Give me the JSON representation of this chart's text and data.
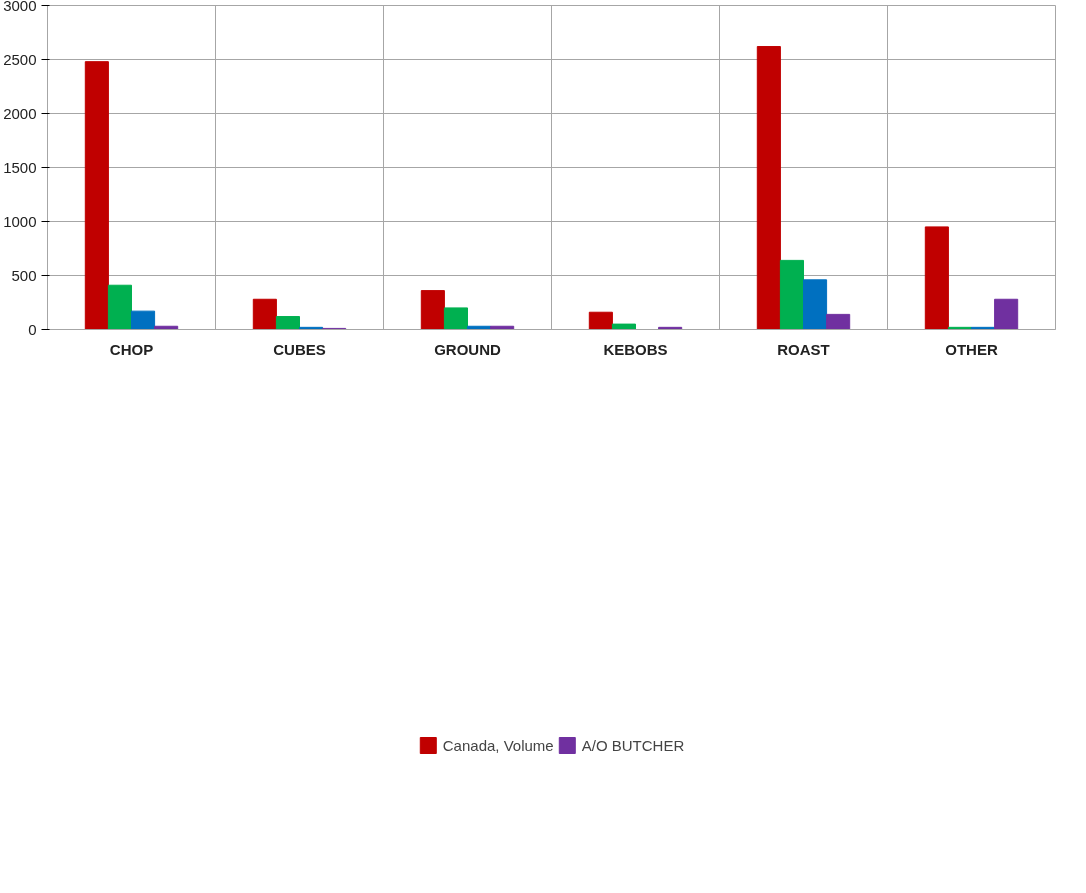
{
  "chart_data": {
    "type": "bar",
    "categories": [
      "CHOP",
      "CUBES",
      "GROUND",
      "KEBOBS",
      "ROAST",
      "OTHER"
    ],
    "series": [
      {
        "name": "Canada, Volume",
        "color": "#c00000",
        "values": [
          2480,
          280,
          360,
          160,
          2620,
          950
        ]
      },
      {
        "color": "#00b050",
        "values": [
          410,
          120,
          200,
          50,
          640,
          20
        ]
      },
      {
        "color": "#0070c0",
        "values": [
          170,
          20,
          30,
          null,
          460,
          20
        ]
      },
      {
        "name": "A/O BUTCHER",
        "color": "#7030a0",
        "values": [
          30,
          10,
          30,
          20,
          140,
          280
        ]
      }
    ],
    "ylim": [
      0,
      3000
    ],
    "yticks": [
      0,
      500,
      1000,
      1500,
      2000,
      2500,
      3000
    ],
    "grid": true,
    "legend": "bottom"
  }
}
